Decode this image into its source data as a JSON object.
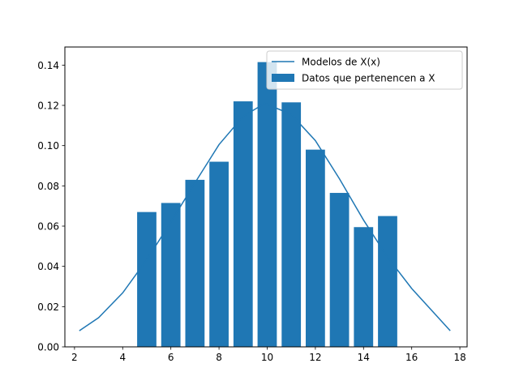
{
  "chart_data": {
    "type": "bar",
    "title": "",
    "xlabel": "",
    "ylabel": "",
    "xlim": [
      1.6,
      18.3
    ],
    "ylim": [
      0.0,
      0.149
    ],
    "grid": false,
    "legend_position": "top-right",
    "xticks": [
      2,
      4,
      6,
      8,
      10,
      12,
      14,
      16,
      18
    ],
    "xtick_labels": [
      "2",
      "4",
      "6",
      "8",
      "10",
      "12",
      "14",
      "16",
      "18"
    ],
    "yticks": [
      0.0,
      0.02,
      0.04,
      0.06,
      0.08,
      0.1,
      0.12,
      0.14
    ],
    "ytick_labels": [
      "0.00",
      "0.02",
      "0.04",
      "0.06",
      "0.08",
      "0.10",
      "0.12",
      "0.14"
    ],
    "series": [
      {
        "name": "Datos que pertenencen a X",
        "type": "bar",
        "color": "#1f77b4",
        "bar_width": 0.8,
        "x": [
          5,
          6,
          7,
          8,
          9,
          10,
          11,
          12,
          13,
          14,
          15
        ],
        "values": [
          0.067,
          0.0715,
          0.083,
          0.092,
          0.122,
          0.1415,
          0.1215,
          0.098,
          0.0765,
          0.0595,
          0.065
        ]
      },
      {
        "name": "Modelos de X(x)",
        "type": "line",
        "color": "#1f77b4",
        "x": [
          2.2,
          3.0,
          4.0,
          5.0,
          6.0,
          7.0,
          8.0,
          9.0,
          9.9,
          11.0,
          12.0,
          13.0,
          14.0,
          15.0,
          16.0,
          17.6
        ],
        "values": [
          0.008,
          0.0145,
          0.0268,
          0.0433,
          0.062,
          0.0815,
          0.1005,
          0.1145,
          0.121,
          0.1155,
          0.1025,
          0.0835,
          0.063,
          0.0445,
          0.029,
          0.008
        ]
      }
    ]
  }
}
